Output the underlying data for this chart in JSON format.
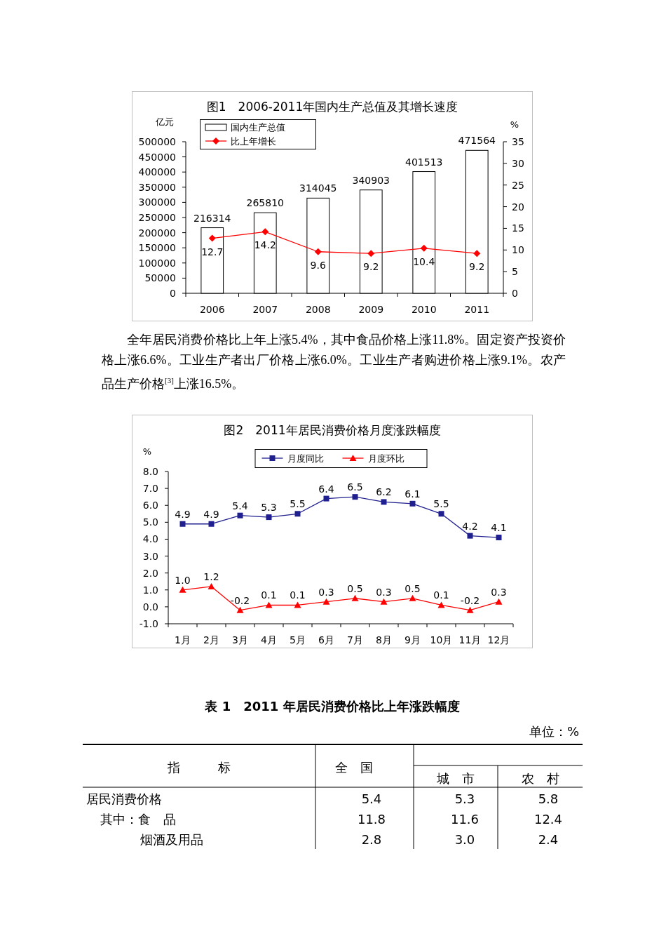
{
  "chart_data": [
    {
      "type": "bar",
      "title": "图1　2006-2011年国内生产总值及其增长速度",
      "ylabel": "亿元",
      "y2label": "%",
      "categories": [
        "2006",
        "2007",
        "2008",
        "2009",
        "2010",
        "2011"
      ],
      "series": [
        {
          "name": "国内生产总值",
          "type": "bar",
          "color": "#ffffff",
          "values": [
            216314,
            265810,
            314045,
            340903,
            401513,
            471564
          ]
        },
        {
          "name": "比上年增长",
          "type": "line",
          "axis": "y2",
          "color": "#ff0000",
          "marker": "diamond",
          "values": [
            12.7,
            14.2,
            9.6,
            9.2,
            10.4,
            9.2
          ]
        }
      ],
      "ylim": [
        0,
        500000
      ],
      "yticks": [
        0,
        50000,
        100000,
        150000,
        200000,
        250000,
        300000,
        350000,
        400000,
        450000,
        500000
      ],
      "y2lim": [
        0,
        35
      ],
      "y2ticks": [
        0,
        5,
        10,
        15,
        20,
        25,
        30,
        35
      ],
      "data_labels": true,
      "legend": "top left"
    },
    {
      "type": "line",
      "title": "图2　2011年居民消费价格月度涨跌幅度",
      "ylabel": "%",
      "categories": [
        "1月",
        "2月",
        "3月",
        "4月",
        "5月",
        "6月",
        "7月",
        "8月",
        "9月",
        "10月",
        "11月",
        "12月"
      ],
      "series": [
        {
          "name": "月度同比",
          "color": "#1f1f8f",
          "marker": "square",
          "values": [
            4.9,
            4.9,
            5.4,
            5.3,
            5.5,
            6.4,
            6.5,
            6.2,
            6.1,
            5.5,
            4.2,
            4.1
          ],
          "value_labels": [
            "4.9",
            "4.9",
            "5.4",
            "5.3",
            "5.5",
            "6.4",
            "6.5",
            "6.2",
            "6.1",
            "5.5",
            "4.2",
            "4.1"
          ]
        },
        {
          "name": "月度环比",
          "color": "#ff0000",
          "marker": "triangle",
          "values": [
            1.0,
            1.2,
            -0.2,
            0.1,
            0.1,
            0.3,
            0.5,
            0.3,
            0.5,
            0.1,
            -0.2,
            0.3
          ],
          "value_labels": [
            "1.0",
            "1.2",
            "-0.2",
            "0.1",
            "0.1",
            "0.3",
            "0.5",
            "0.3",
            "0.5",
            "0.1",
            "-0.2",
            "0.3"
          ]
        }
      ],
      "ylim": [
        -1,
        8
      ],
      "yticks": [
        {
          "value": -1,
          "label": "-1.0"
        },
        {
          "value": 0,
          "label": "0.0"
        },
        {
          "value": 1,
          "label": "1.0"
        },
        {
          "value": 2,
          "label": "2.0"
        },
        {
          "value": 3,
          "label": "3.0"
        },
        {
          "value": 4,
          "label": "4.0"
        },
        {
          "value": 5,
          "label": "5.0"
        },
        {
          "value": 6,
          "label": "6.0"
        },
        {
          "value": 7,
          "label": "7.0"
        },
        {
          "value": 8,
          "label": "8.0"
        }
      ],
      "legend": "top"
    },
    {
      "type": "other",
      "annotations": [
        "全年居民消费价格比上年上涨5.4%，其中食品价格上涨11.8%。固定资产投资价格上涨6.6%。工业生产者出厂价格上涨6.0%。工业生产者购进价格上涨9.1%。农产品生产价格$^{[3]}$上涨16.5%。"
      ]
    },
    {
      "type": "other",
      "title": "表 1　2011 年居民消费价格比上年涨跌幅度",
      "subtitle": "单位：%",
      "categories": [
        "指　　　标",
        "全　国",
        "城　市",
        "农　村"
      ],
      "y_categories": [
        "居民消费价格",
        "其中：食　品",
        "烟酒及用品"
      ],
      "cell_labels": [
        [
          "5.4",
          "5.3",
          "5.8"
        ],
        [
          "11.8",
          "11.6",
          "12.4"
        ],
        [
          "2.8",
          "3.0",
          "2.4"
        ]
      ]
    }
  ]
}
